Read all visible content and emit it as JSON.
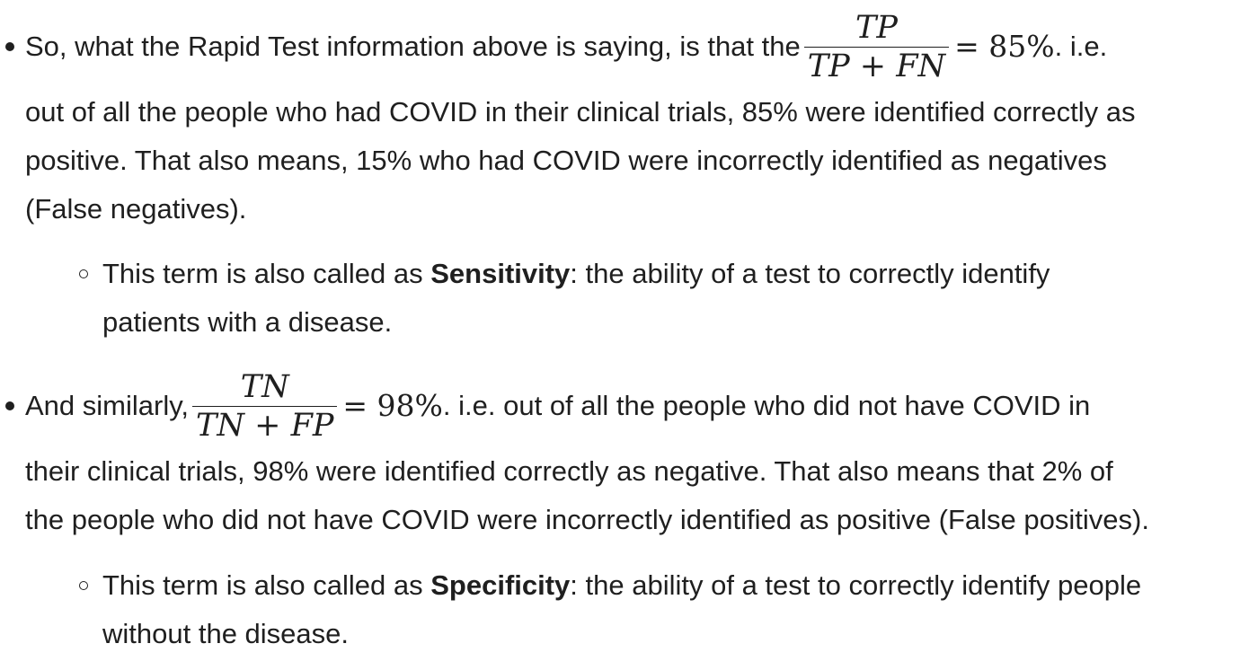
{
  "bullet1": {
    "intro": "So, what the Rapid Test information above is saying, is that the",
    "fraction": {
      "numerator": "TP",
      "denominator": "TP + FN"
    },
    "equals": "= 85%",
    "after_math": ". i.e.",
    "line2": "out of all the people who had COVID in their clinical trials, 85% were identified correctly as",
    "line3": "positive. That also means, 15% who had COVID were incorrectly identified as negatives",
    "line4": "(False negatives).",
    "sub": {
      "prefix": "This term is also called as ",
      "term": "Sensitivity",
      "suffix": ": the ability of a test to correctly identify",
      "line2": "patients with a disease."
    }
  },
  "bullet2": {
    "intro": "And similarly,",
    "fraction": {
      "numerator": "TN",
      "denominator": "TN + FP"
    },
    "equals": "= 98%",
    "after_math": ". i.e. out of all the people who did not have COVID in",
    "line2": "their clinical trials, 98% were identified correctly as negative. That also means that 2% of",
    "line3": "the people who did not have COVID were incorrectly identified as positive (False positives).",
    "sub": {
      "prefix": "This term is also called as ",
      "term": "Specificity",
      "suffix": ": the ability of a test to correctly identify people",
      "line2": "without the disease."
    }
  }
}
